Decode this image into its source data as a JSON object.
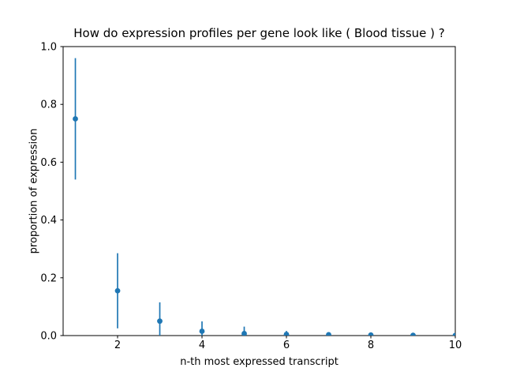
{
  "chart_data": {
    "type": "scatter",
    "subtype": "errorbar",
    "title": "How do expression profiles per gene look like ( Blood tissue ) ?",
    "xlabel": "n-th most expressed transcript",
    "ylabel": "proportion of expression",
    "x": [
      1,
      2,
      3,
      4,
      5,
      6,
      7,
      8,
      9,
      10
    ],
    "y": [
      0.75,
      0.155,
      0.05,
      0.015,
      0.007,
      0.004,
      0.003,
      0.002,
      0.001,
      0.0005
    ],
    "yerr": [
      0.21,
      0.13,
      0.065,
      0.034,
      0.024,
      0.012,
      0.008,
      0.005,
      0.003,
      0.002
    ],
    "xlim": [
      0.71,
      10
    ],
    "ylim": [
      0.0,
      1.0
    ],
    "xticks": [
      2,
      4,
      6,
      8,
      10
    ],
    "xtick_labels": [
      "2",
      "4",
      "6",
      "8",
      "10"
    ],
    "yticks": [
      0.0,
      0.2,
      0.4,
      0.6,
      0.8,
      1.0
    ],
    "ytick_labels": [
      "0.0",
      "0.2",
      "0.4",
      "0.6",
      "0.8",
      "1.0"
    ],
    "grid": false,
    "legend": false,
    "frame": "full-box",
    "marker_color": "#1f77b4",
    "axis_color": "#000000",
    "text_color": "#000000",
    "background_color": "#ffffff"
  }
}
